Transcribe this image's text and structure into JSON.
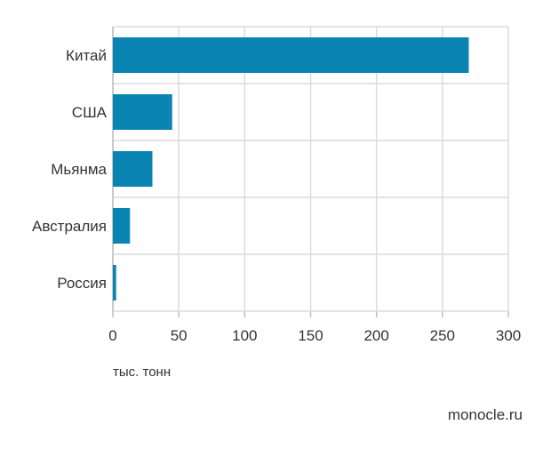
{
  "chart_data": {
    "type": "bar",
    "orientation": "horizontal",
    "categories": [
      "Китай",
      "США",
      "Мьянма",
      "Австралия",
      "Россия"
    ],
    "values": [
      270,
      45,
      30,
      13,
      2.5
    ],
    "xlim": [
      0,
      300
    ],
    "xticks": [
      0,
      50,
      100,
      150,
      200,
      250,
      300
    ],
    "xlabel": "тыс. тонн",
    "grid": true
  },
  "colors": {
    "bar": "#0a85b3",
    "grid": "#dcdcdc",
    "axis": "#bfbfbf"
  },
  "unit_label": "тыс. тонн",
  "source": "monocle.ru"
}
